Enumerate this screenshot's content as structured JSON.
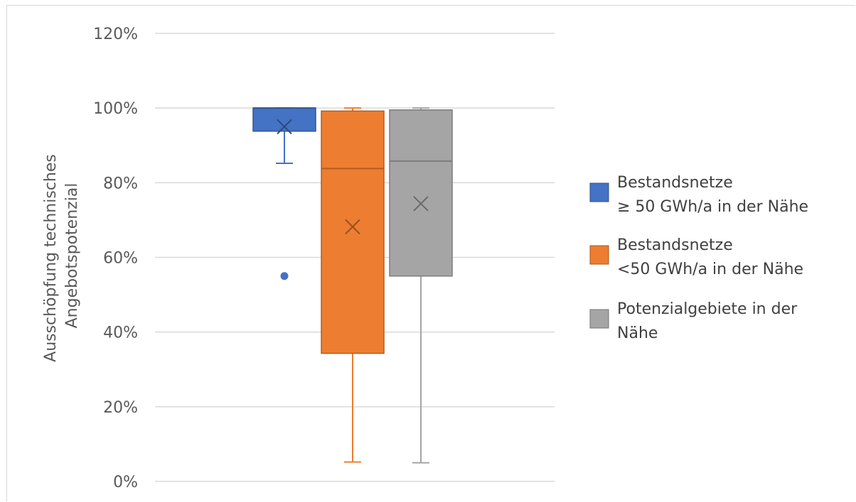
{
  "chart_data": {
    "type": "box",
    "title": "",
    "xlabel": "",
    "ylabel": [
      "Ausschöpfung technisches",
      "Angebotspotenzial"
    ],
    "ylim": [
      0,
      120
    ],
    "yticks": [
      0,
      20,
      40,
      60,
      80,
      100,
      120
    ],
    "ytick_labels": [
      "0%",
      "20%",
      "40%",
      "60%",
      "80%",
      "100%",
      "120%"
    ],
    "grid": true,
    "legend_position": "right",
    "series": [
      {
        "name_lines": [
          "Bestandsnetze",
          "≥ 50 GWh/a in der Nähe"
        ],
        "color": "#4472C4",
        "min": 85.2,
        "q1": 93.8,
        "median": 100,
        "q3": 100,
        "max": 100,
        "mean": 95.0,
        "outliers": [
          55.0
        ]
      },
      {
        "name_lines": [
          "Bestandsnetze",
          "<50 GWh/a in der Nähe"
        ],
        "color": "#ED7D31",
        "min": 5.2,
        "q1": 34.3,
        "median": 83.8,
        "q3": 99.2,
        "max": 100,
        "mean": 68.2,
        "outliers": []
      },
      {
        "name_lines": [
          "Potenzialgebiete in der",
          "Nähe"
        ],
        "color": "#A5A5A5",
        "min": 5.0,
        "q1": 55.0,
        "median": 85.8,
        "q3": 99.5,
        "max": 100,
        "mean": 74.4,
        "outliers": []
      }
    ]
  }
}
